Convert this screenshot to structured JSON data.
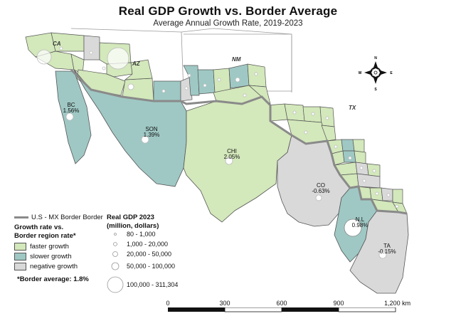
{
  "title": "Real GDP Growth vs. Border Average",
  "subtitle": "Average Annual Growth Rate, 2019-2023",
  "colors": {
    "faster": "#d3e8bb",
    "slower": "#9fc8c4",
    "negative": "#d9d9d9",
    "border_line": "#8a8a8a",
    "outline": "#666666"
  },
  "us_state_labels": [
    "CA",
    "AZ",
    "NM",
    "TX"
  ],
  "mx_states": [
    {
      "code": "BC",
      "value": "1.56%"
    },
    {
      "code": "SON",
      "value": "1.39%"
    },
    {
      "code": "CHI",
      "value": "2.05%"
    },
    {
      "code": "CO",
      "value": "-0.63%"
    },
    {
      "code": "N.L",
      "value": "0.98%"
    },
    {
      "code": "TA",
      "value": "-0.15%"
    }
  ],
  "compass": {
    "n": "N",
    "s": "S",
    "e": "E",
    "w": "W"
  },
  "legend": {
    "border_line_label": "U.S - MX Border Border",
    "growth_header_1": "Growth rate vs.",
    "growth_header_2": "Border region rate*",
    "items": [
      {
        "label": "faster growth",
        "color_key": "faster"
      },
      {
        "label": "slower growth",
        "color_key": "slower"
      },
      {
        "label": "negative growth",
        "color_key": "negative"
      }
    ],
    "footnote": "*Border average: 1.8%"
  },
  "gdp_legend": {
    "header_1": "Real GDP 2023",
    "header_2": "(million, dollars)",
    "classes": [
      "80 - 1,000",
      "1,000 - 20,000",
      "20,000 - 50,000",
      "50,000 - 100,000",
      "100,000 - 311,304"
    ]
  },
  "scale_bar": {
    "labels": [
      "0",
      "300",
      "600",
      "900",
      "1,200 km"
    ]
  }
}
